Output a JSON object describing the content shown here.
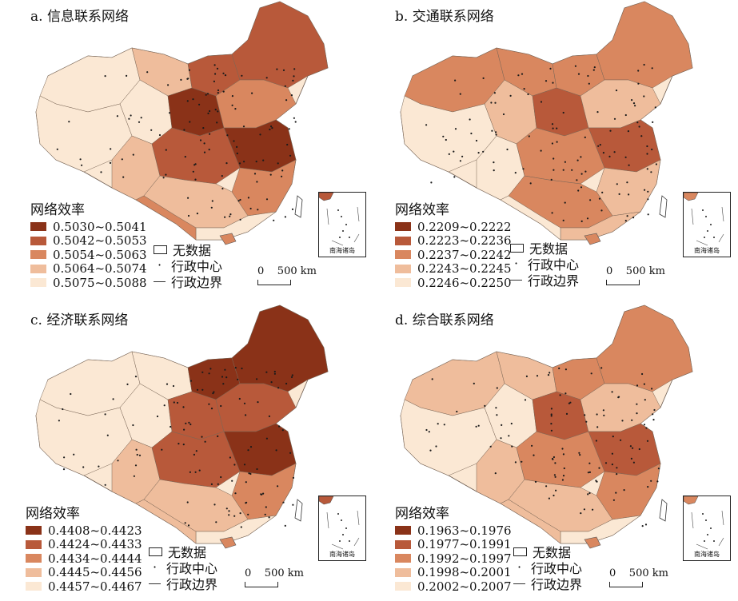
{
  "legend_title": "网络效率",
  "symbols": {
    "no_data": "无数据",
    "admin_center": "行政中心",
    "admin_boundary": "行政边界"
  },
  "scale_label": "0    500 km",
  "inset_label": "南海诸岛",
  "panels": [
    {
      "title": "a. 信息联系网络",
      "classes": [
        {
          "label": "0.5030~0.5041",
          "color": "#8a3218"
        },
        {
          "label": "0.5042~0.5053",
          "color": "#b8593a"
        },
        {
          "label": "0.5054~0.5063",
          "color": "#d9875f"
        },
        {
          "label": "0.5064~0.5074",
          "color": "#efbd9c"
        },
        {
          "label": "0.5075~0.5088",
          "color": "#fbe8d4"
        }
      ]
    },
    {
      "title": "b. 交通联系网络",
      "classes": [
        {
          "label": "0.2209~0.2222",
          "color": "#8a3218"
        },
        {
          "label": "0.2223~0.2236",
          "color": "#b8593a"
        },
        {
          "label": "0.2237~0.2242",
          "color": "#d9875f"
        },
        {
          "label": "0.2243~0.2245",
          "color": "#efbd9c"
        },
        {
          "label": "0.2246~0.2250",
          "color": "#fbe8d4"
        }
      ]
    },
    {
      "title": "c. 经济联系网络",
      "classes": [
        {
          "label": "0.4408~0.4423",
          "color": "#8a3218"
        },
        {
          "label": "0.4424~0.4433",
          "color": "#b8593a"
        },
        {
          "label": "0.4434~0.4444",
          "color": "#d9875f"
        },
        {
          "label": "0.4445~0.4456",
          "color": "#efbd9c"
        },
        {
          "label": "0.4457~0.4467",
          "color": "#fbe8d4"
        }
      ]
    },
    {
      "title": "d. 综合联系网络",
      "classes": [
        {
          "label": "0.1963~0.1976",
          "color": "#8a3218"
        },
        {
          "label": "0.1977~0.1991",
          "color": "#b8593a"
        },
        {
          "label": "0.1992~0.1997",
          "color": "#d9875f"
        },
        {
          "label": "0.1998~0.2001",
          "color": "#efbd9c"
        },
        {
          "label": "0.2002~0.2007",
          "color": "#fbe8d4"
        }
      ]
    }
  ]
}
